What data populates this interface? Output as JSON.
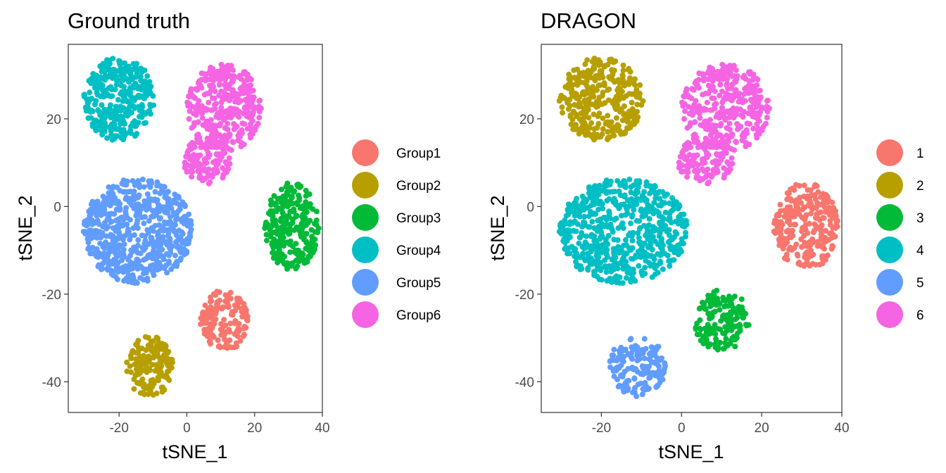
{
  "chart_data": [
    {
      "type": "scatter",
      "title": "Ground truth",
      "xlabel": "tSNE_1",
      "ylabel": "tSNE_2",
      "xlim": [
        -35,
        40
      ],
      "ylim": [
        -47,
        37
      ],
      "xticks": [
        -20,
        0,
        20,
        40
      ],
      "yticks": [
        -40,
        -20,
        0,
        20
      ],
      "xtick_labels": [
        "-20",
        "0",
        "20",
        "40"
      ],
      "ytick_labels": [
        "-40",
        "-20",
        "0",
        "20"
      ],
      "grid": false,
      "legend_position": "right",
      "legend": [
        {
          "label": "Group1",
          "color": "#F8766D"
        },
        {
          "label": "Group2",
          "color": "#B79F00"
        },
        {
          "label": "Group3",
          "color": "#00BA38"
        },
        {
          "label": "Group4",
          "color": "#00BFC4"
        },
        {
          "label": "Group5",
          "color": "#619CFF"
        },
        {
          "label": "Group6",
          "color": "#F564E3"
        }
      ],
      "clusters": [
        {
          "group": "Group1",
          "color": "#F8766D",
          "center": [
            11,
            -26
          ],
          "radius": [
            7,
            7
          ]
        },
        {
          "group": "Group2",
          "color": "#B79F00",
          "center": [
            -11,
            -36.5
          ],
          "radius": [
            7,
            7
          ]
        },
        {
          "group": "Group3",
          "color": "#00BA38",
          "center": [
            31,
            -4.5
          ],
          "radius": [
            8,
            10
          ]
        },
        {
          "group": "Group4",
          "color": "#00BFC4",
          "center": [
            -20,
            24.5
          ],
          "radius": [
            10.5,
            9.5
          ]
        },
        {
          "group": "Group5",
          "color": "#619CFF",
          "center": [
            -14.5,
            -5.5
          ],
          "radius": [
            16,
            12
          ]
        },
        {
          "group": "Group6",
          "color": "#F564E3",
          "center": [
            11,
            22.5
          ],
          "radius": [
            11,
            10
          ]
        },
        {
          "group": "Group6",
          "color": "#F564E3",
          "center": [
            6,
            10.5
          ],
          "radius": [
            7,
            5.5
          ]
        }
      ]
    },
    {
      "type": "scatter",
      "title": "DRAGON",
      "xlabel": "tSNE_1",
      "ylabel": "tSNE_2",
      "xlim": [
        -35,
        40
      ],
      "ylim": [
        -47,
        37
      ],
      "xticks": [
        -20,
        0,
        20,
        40
      ],
      "yticks": [
        -40,
        -20,
        0,
        20
      ],
      "xtick_labels": [
        "-20",
        "0",
        "20",
        "40"
      ],
      "ytick_labels": [
        "-40",
        "-20",
        "0",
        "20"
      ],
      "grid": false,
      "legend_position": "right",
      "legend": [
        {
          "label": "1",
          "color": "#F8766D"
        },
        {
          "label": "2",
          "color": "#B79F00"
        },
        {
          "label": "3",
          "color": "#00BA38"
        },
        {
          "label": "4",
          "color": "#00BFC4"
        },
        {
          "label": "5",
          "color": "#619CFF"
        },
        {
          "label": "6",
          "color": "#F564E3"
        }
      ],
      "clusters": [
        {
          "group": "1",
          "color": "#F8766D",
          "center": [
            31,
            -4.5
          ],
          "radius": [
            8,
            10
          ]
        },
        {
          "group": "2",
          "color": "#B79F00",
          "center": [
            -20,
            24.5
          ],
          "radius": [
            10.5,
            9.5
          ]
        },
        {
          "group": "3",
          "color": "#00BA38",
          "center": [
            10,
            -26
          ],
          "radius": [
            7,
            7
          ]
        },
        {
          "group": "4",
          "color": "#00BFC4",
          "center": [
            -14.5,
            -5.5
          ],
          "radius": [
            16,
            12
          ]
        },
        {
          "group": "5",
          "color": "#619CFF",
          "center": [
            -11,
            -36.5
          ],
          "radius": [
            7,
            7
          ]
        },
        {
          "group": "6",
          "color": "#F564E3",
          "center": [
            11,
            22.5
          ],
          "radius": [
            11,
            10
          ]
        },
        {
          "group": "6",
          "color": "#F564E3",
          "center": [
            6,
            10.5
          ],
          "radius": [
            7,
            5.5
          ]
        }
      ]
    }
  ]
}
